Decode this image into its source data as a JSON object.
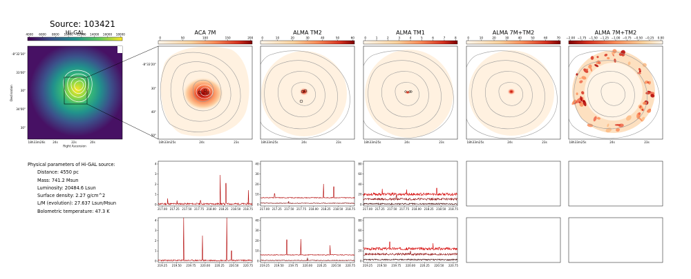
{
  "source_title": "Source: 103421",
  "panels": {
    "higal": {
      "title": "Hi-GAL",
      "colorbar_ticks": [
        "4000",
        "6000",
        "8000",
        "10000",
        "12000",
        "14000",
        "16000",
        "18000"
      ],
      "ylabel": "Declination",
      "xlabel": "Right Ascension",
      "yticks": [
        "-8°32'30\"",
        "33'00\"",
        "30\"",
        "34'00\"",
        "30\""
      ],
      "xticks": [
        "18h33m26s",
        "24s",
        "22s",
        "20s"
      ]
    },
    "aca7m": {
      "title": "ACA 7M",
      "colorbar_ticks": [
        "0",
        "50",
        "100",
        "150",
        "200"
      ],
      "yticks": [
        "-8°33'20\"",
        "30\"",
        "40\"",
        "50\""
      ],
      "xticks": [
        "18h33m25s",
        "24s",
        "23s"
      ]
    },
    "almatm2": {
      "title": "ALMA TM2",
      "colorbar_ticks": [
        "0",
        "10",
        "20",
        "30",
        "40",
        "50",
        "60"
      ],
      "xticks": [
        "18h33m25s",
        "24s",
        "23s"
      ]
    },
    "almatm1": {
      "title": "ALMA TM1",
      "colorbar_ticks": [
        "0",
        "1",
        "2",
        "3",
        "4",
        "5",
        "6",
        "7",
        "8"
      ],
      "xticks": [
        "18h33m25s",
        "24s",
        "23s"
      ]
    },
    "almacomb": {
      "title": "ALMA 7M+TM2",
      "colorbar_ticks": [
        "0",
        "10",
        "20",
        "30",
        "40",
        "50",
        "60",
        "70"
      ],
      "xticks": [
        "18h33m25s",
        "24s",
        "23s"
      ]
    },
    "almaspix": {
      "title": "ALMA 7M+TM2",
      "colorbar_ticks": [
        "−2.00",
        "−1.75",
        "−1.50",
        "−1.25",
        "−1.00",
        "−0.75",
        "−0.50",
        "−0.25",
        "0.00"
      ],
      "xticks": [
        "18h33m25s",
        "24s",
        "23s"
      ]
    }
  },
  "params": {
    "header": "Physical parameters of Hi-GAL source:",
    "distance": "Distance: 4550 pc",
    "mass": "Mass: 741.2 Msun",
    "luminosity": "Luminosity: 20484.6 Lsun",
    "surface_density": "Surface density: 2.27 g/cm^2",
    "lm": "L/M (evolution): 27.637 Lsun/Msun",
    "tbol": "Bolometric temperature: 47.3 K"
  },
  "spectra": {
    "top_xticks": [
      "217.00",
      "217.25",
      "217.50",
      "217.75",
      "218.00",
      "218.25",
      "218.50",
      "218.75"
    ],
    "bottom_xticks": [
      "219.25",
      "219.50",
      "219.75",
      "220.00",
      "220.25",
      "220.50",
      "220.75"
    ],
    "aca_yticks": [
      "0",
      "1",
      "2",
      "3",
      "4"
    ],
    "tm2_yticks": [
      "0",
      "10",
      "20",
      "30",
      "40"
    ],
    "tm1_yticks": [
      "0",
      "20",
      "40",
      "60",
      "80"
    ]
  },
  "colors": {
    "spectrum_line": "#b10000",
    "map_background": "#fff1e0",
    "contour": "#9a9a9a"
  }
}
